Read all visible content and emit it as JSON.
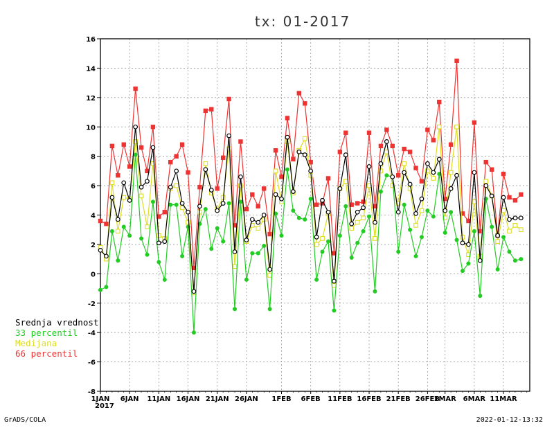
{
  "footer": {
    "left": "GrADS/COLA",
    "right": "2022-01-12-13:32"
  },
  "chart_data": {
    "type": "line",
    "title": "tx: 01-2017",
    "ylim": [
      -8,
      16
    ],
    "y_ticks": [
      "-8",
      "-6",
      "-4",
      "-2",
      "0",
      "2",
      "4",
      "6",
      "8",
      "10",
      "12",
      "14",
      "16"
    ],
    "grid": true,
    "legend_placement": "left",
    "x_tick_labels": [
      "1JAN\n2017",
      "6JAN",
      "11JAN",
      "16JAN",
      "21JAN",
      "26JAN",
      "1FEB",
      "6FEB",
      "11FEB",
      "16FEB",
      "21FEB",
      "26FEB",
      "1MAR",
      "6MAR",
      "11MAR"
    ],
    "x_tick_days": [
      0,
      5,
      10,
      15,
      20,
      25,
      31,
      36,
      41,
      46,
      51,
      56,
      59,
      64,
      69
    ],
    "x_day_range": [
      0,
      73.5
    ],
    "series": [
      {
        "name": "Srednja vrednost",
        "color": "#000000",
        "marker": "circle",
        "values": [
          1.6,
          1.2,
          5.2,
          3.7,
          6.2,
          5.0,
          10.0,
          5.9,
          6.3,
          8.6,
          2.1,
          2.2,
          5.9,
          7.0,
          4.8,
          4.2,
          -1.2,
          4.6,
          7.1,
          5.7,
          4.3,
          4.8,
          9.4,
          1.5,
          6.6,
          2.3,
          3.7,
          3.5,
          4.0,
          0.3,
          5.4,
          5.1,
          9.3,
          5.6,
          8.3,
          8.1,
          7.0,
          2.5,
          5.0,
          4.2,
          -0.5,
          5.8,
          8.1,
          3.4,
          4.2,
          4.5,
          7.3,
          3.5,
          7.5,
          9.0,
          6.6,
          4.2,
          6.9,
          6.1,
          4.1,
          5.1,
          7.5,
          6.9,
          7.8,
          4.3,
          5.8,
          6.7,
          2.1,
          2.0,
          6.9,
          0.9,
          6.0,
          5.3,
          2.6,
          5.2,
          3.7,
          3.8,
          3.8
        ]
      },
      {
        "name": "33 percentil",
        "color": "#22cc22",
        "marker": "circle",
        "values": [
          -1.1,
          -0.9,
          2.9,
          0.9,
          3.2,
          2.6,
          8.1,
          2.4,
          1.3,
          4.9,
          0.8,
          -0.4,
          4.7,
          4.7,
          1.2,
          3.2,
          -4.0,
          3.4,
          4.4,
          1.7,
          3.1,
          2.2,
          4.8,
          -2.4,
          4.9,
          -0.4,
          1.4,
          1.4,
          1.9,
          -2.4,
          4.1,
          2.6,
          7.1,
          4.3,
          3.8,
          3.7,
          5.1,
          -0.4,
          1.5,
          2.2,
          -2.5,
          2.6,
          4.6,
          1.1,
          2.1,
          2.9,
          3.9,
          -1.2,
          5.6,
          6.7,
          6.6,
          1.5,
          4.7,
          3.0,
          1.2,
          2.5,
          4.3,
          3.9,
          6.8,
          2.8,
          4.2,
          2.3,
          0.2,
          0.7,
          2.9,
          -1.5,
          5.1,
          3.2,
          0.3,
          2.5,
          1.5,
          0.9,
          1.0
        ]
      },
      {
        "name": "Medijana",
        "color": "#dddd22",
        "marker": "square",
        "values": [
          1.8,
          1.0,
          6.2,
          2.9,
          5.2,
          5.1,
          9.0,
          5.3,
          3.2,
          7.5,
          2.6,
          2.4,
          5.8,
          6.0,
          4.5,
          3.5,
          -1.3,
          4.2,
          7.5,
          5.5,
          4.4,
          5.2,
          8.5,
          0.5,
          6.0,
          2.2,
          3.3,
          3.1,
          3.7,
          -0.1,
          7.0,
          4.9,
          9.0,
          5.5,
          8.4,
          9.2,
          6.7,
          2.0,
          2.4,
          4.1,
          -0.8,
          5.8,
          6.3,
          3.1,
          3.5,
          3.8,
          6.0,
          2.4,
          7.0,
          8.3,
          6.0,
          4.8,
          7.5,
          5.8,
          3.3,
          4.3,
          7.0,
          6.5,
          10.0,
          3.8,
          6.9,
          10.0,
          2.5,
          1.3,
          4.9,
          1.2,
          6.3,
          5.3,
          2.2,
          4.3,
          2.9,
          3.3,
          3.0
        ]
      },
      {
        "name": "66 percentil",
        "color": "#ee3333",
        "marker": "square",
        "values": [
          3.6,
          3.4,
          8.7,
          6.7,
          8.8,
          7.3,
          12.6,
          8.6,
          7.0,
          10.0,
          3.9,
          4.2,
          7.6,
          8.0,
          8.8,
          6.9,
          0.4,
          5.9,
          11.1,
          11.2,
          5.8,
          7.9,
          11.9,
          3.3,
          9.0,
          4.4,
          5.4,
          4.6,
          5.8,
          2.7,
          8.4,
          6.6,
          10.6,
          7.8,
          12.3,
          11.6,
          7.6,
          4.7,
          4.8,
          6.5,
          1.4,
          8.3,
          9.6,
          4.7,
          4.8,
          4.9,
          9.6,
          4.6,
          8.7,
          9.8,
          8.7,
          6.7,
          8.5,
          8.3,
          7.2,
          6.3,
          9.8,
          9.1,
          11.7,
          5.1,
          8.8,
          14.5,
          4.1,
          3.6,
          10.3,
          2.9,
          7.6,
          7.1,
          2.6,
          6.8,
          5.2,
          5.0,
          5.4
        ]
      }
    ]
  }
}
